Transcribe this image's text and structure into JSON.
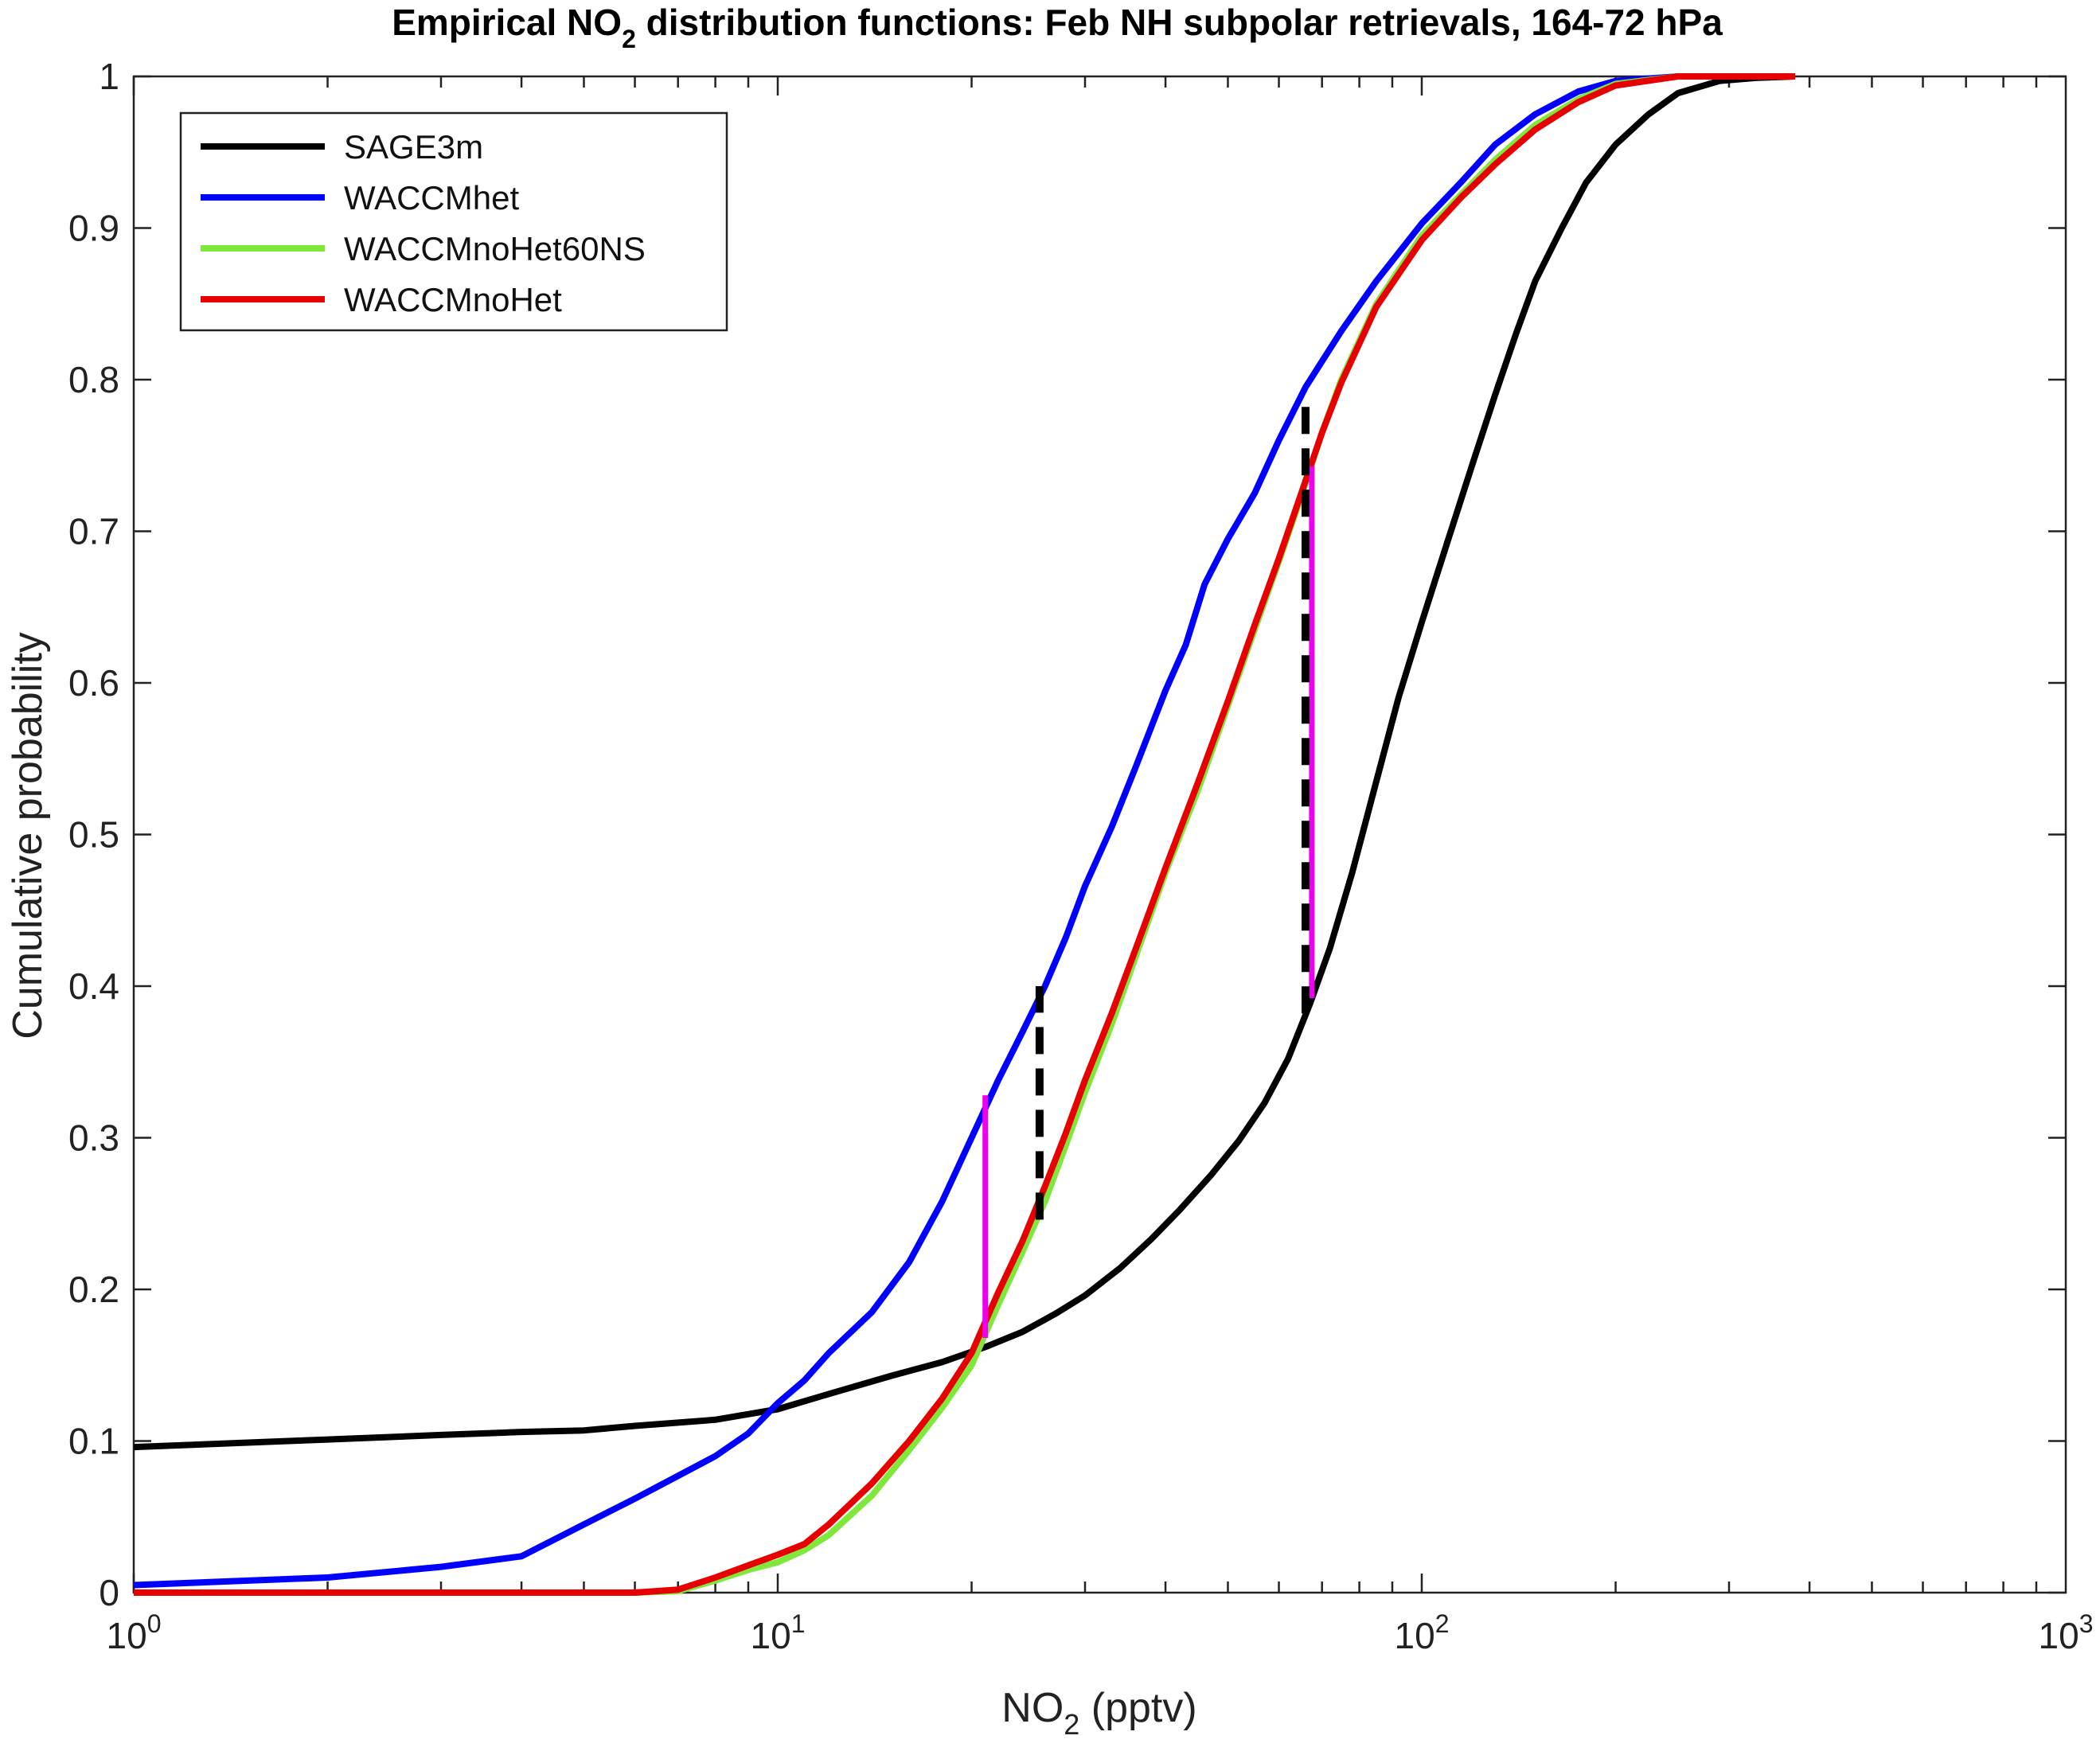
{
  "chart_data": {
    "type": "line",
    "title": {
      "prefix": "Empirical NO",
      "sub": "2",
      "suffix": " distribution functions: Feb NH subpolar retrievals, 164-72 hPa"
    },
    "xlabel": {
      "prefix": "NO",
      "sub": "2",
      "suffix": " (pptv)"
    },
    "ylabel": "Cumulative probability",
    "xscale": "log",
    "xlim": [
      1,
      1000
    ],
    "ylim": [
      0,
      1
    ],
    "grid": false,
    "legend_position": "top-left",
    "xticks": [
      {
        "value": 1,
        "base": "10",
        "exp": "0"
      },
      {
        "value": 10,
        "base": "10",
        "exp": "1"
      },
      {
        "value": 100,
        "base": "10",
        "exp": "2"
      },
      {
        "value": 1000,
        "base": "10",
        "exp": "3"
      }
    ],
    "yticks": [
      {
        "value": 0,
        "label": "0"
      },
      {
        "value": 0.1,
        "label": "0.1"
      },
      {
        "value": 0.2,
        "label": "0.2"
      },
      {
        "value": 0.3,
        "label": "0.3"
      },
      {
        "value": 0.4,
        "label": "0.4"
      },
      {
        "value": 0.5,
        "label": "0.5"
      },
      {
        "value": 0.6,
        "label": "0.6"
      },
      {
        "value": 0.7,
        "label": "0.7"
      },
      {
        "value": 0.8,
        "label": "0.8"
      },
      {
        "value": 0.9,
        "label": "0.9"
      },
      {
        "value": 1,
        "label": "1"
      }
    ],
    "series": [
      {
        "name": "SAGE3m",
        "color": "#000000",
        "points": [
          [
            1,
            0.096
          ],
          [
            2,
            0.101
          ],
          [
            3,
            0.104
          ],
          [
            4,
            0.106
          ],
          [
            5,
            0.107
          ],
          [
            6,
            0.11
          ],
          [
            8,
            0.114
          ],
          [
            10,
            0.121
          ],
          [
            12,
            0.131
          ],
          [
            15,
            0.143
          ],
          [
            18,
            0.152
          ],
          [
            21,
            0.162
          ],
          [
            24,
            0.172
          ],
          [
            27,
            0.184
          ],
          [
            30,
            0.196
          ],
          [
            34,
            0.214
          ],
          [
            38,
            0.233
          ],
          [
            42,
            0.252
          ],
          [
            47,
            0.275
          ],
          [
            52,
            0.298
          ],
          [
            57,
            0.323
          ],
          [
            62,
            0.352
          ],
          [
            67,
            0.388
          ],
          [
            72,
            0.425
          ],
          [
            78,
            0.475
          ],
          [
            85,
            0.535
          ],
          [
            92,
            0.59
          ],
          [
            100,
            0.64
          ],
          [
            110,
            0.695
          ],
          [
            120,
            0.745
          ],
          [
            130,
            0.79
          ],
          [
            140,
            0.83
          ],
          [
            150,
            0.865
          ],
          [
            165,
            0.9
          ],
          [
            180,
            0.93
          ],
          [
            200,
            0.955
          ],
          [
            225,
            0.975
          ],
          [
            250,
            0.989
          ],
          [
            290,
            0.997
          ],
          [
            330,
            0.999
          ],
          [
            380,
            1.0
          ]
        ]
      },
      {
        "name": "WACCMhet",
        "color": "#0000ff",
        "points": [
          [
            1,
            0.005
          ],
          [
            2,
            0.01
          ],
          [
            3,
            0.017
          ],
          [
            4,
            0.024
          ],
          [
            5,
            0.045
          ],
          [
            6,
            0.062
          ],
          [
            7,
            0.077
          ],
          [
            8,
            0.09
          ],
          [
            9,
            0.105
          ],
          [
            10,
            0.125
          ],
          [
            11,
            0.14
          ],
          [
            12,
            0.158
          ],
          [
            14,
            0.185
          ],
          [
            16,
            0.218
          ],
          [
            18,
            0.258
          ],
          [
            20,
            0.3
          ],
          [
            22,
            0.338
          ],
          [
            24,
            0.37
          ],
          [
            26,
            0.4
          ],
          [
            28,
            0.432
          ],
          [
            30,
            0.466
          ],
          [
            33,
            0.505
          ],
          [
            36,
            0.545
          ],
          [
            40,
            0.595
          ],
          [
            43,
            0.625
          ],
          [
            46,
            0.665
          ],
          [
            50,
            0.695
          ],
          [
            55,
            0.725
          ],
          [
            60,
            0.76
          ],
          [
            66,
            0.795
          ],
          [
            75,
            0.832
          ],
          [
            85,
            0.865
          ],
          [
            100,
            0.903
          ],
          [
            115,
            0.93
          ],
          [
            130,
            0.955
          ],
          [
            150,
            0.975
          ],
          [
            175,
            0.99
          ],
          [
            200,
            0.997
          ],
          [
            250,
            1.0
          ],
          [
            380,
            1.0
          ]
        ]
      },
      {
        "name": "WACCMnoHet60NS",
        "color": "#7fe83a",
        "points": [
          [
            1,
            0
          ],
          [
            6,
            0
          ],
          [
            7,
            0.001
          ],
          [
            8,
            0.008
          ],
          [
            9,
            0.015
          ],
          [
            10,
            0.02
          ],
          [
            11,
            0.028
          ],
          [
            12,
            0.038
          ],
          [
            14,
            0.064
          ],
          [
            16,
            0.094
          ],
          [
            18,
            0.122
          ],
          [
            20,
            0.15
          ],
          [
            22,
            0.19
          ],
          [
            24,
            0.225
          ],
          [
            26,
            0.258
          ],
          [
            28,
            0.295
          ],
          [
            30,
            0.33
          ],
          [
            33,
            0.375
          ],
          [
            36,
            0.42
          ],
          [
            40,
            0.475
          ],
          [
            45,
            0.53
          ],
          [
            50,
            0.585
          ],
          [
            55,
            0.635
          ],
          [
            60,
            0.68
          ],
          [
            65,
            0.723
          ],
          [
            70,
            0.765
          ],
          [
            75,
            0.8
          ],
          [
            85,
            0.85
          ],
          [
            100,
            0.895
          ],
          [
            115,
            0.922
          ],
          [
            130,
            0.945
          ],
          [
            150,
            0.968
          ],
          [
            175,
            0.985
          ],
          [
            200,
            0.995
          ],
          [
            250,
            1.0
          ],
          [
            380,
            1.0
          ]
        ]
      },
      {
        "name": "WACCMnoHet",
        "color": "#e60000",
        "points": [
          [
            1,
            0
          ],
          [
            6,
            0
          ],
          [
            7,
            0.002
          ],
          [
            8,
            0.01
          ],
          [
            9,
            0.018
          ],
          [
            10,
            0.025
          ],
          [
            11,
            0.032
          ],
          [
            12,
            0.045
          ],
          [
            14,
            0.072
          ],
          [
            16,
            0.1
          ],
          [
            18,
            0.128
          ],
          [
            20,
            0.158
          ],
          [
            22,
            0.198
          ],
          [
            24,
            0.232
          ],
          [
            26,
            0.268
          ],
          [
            28,
            0.303
          ],
          [
            30,
            0.338
          ],
          [
            33,
            0.382
          ],
          [
            36,
            0.425
          ],
          [
            40,
            0.478
          ],
          [
            45,
            0.535
          ],
          [
            50,
            0.588
          ],
          [
            55,
            0.638
          ],
          [
            60,
            0.682
          ],
          [
            65,
            0.725
          ],
          [
            70,
            0.765
          ],
          [
            75,
            0.798
          ],
          [
            85,
            0.848
          ],
          [
            100,
            0.892
          ],
          [
            115,
            0.92
          ],
          [
            130,
            0.942
          ],
          [
            150,
            0.965
          ],
          [
            175,
            0.983
          ],
          [
            200,
            0.994
          ],
          [
            250,
            1.0
          ],
          [
            380,
            1.0
          ]
        ]
      }
    ],
    "annotations": [
      {
        "kind": "magenta-vertical",
        "color": "#ee00ee",
        "x": 21.0,
        "y0": 0.168,
        "y1": 0.328
      },
      {
        "kind": "magenta-vertical",
        "color": "#ee00ee",
        "x": 67.5,
        "y0": 0.392,
        "y1": 0.743
      },
      {
        "kind": "dashed-vertical",
        "color": "#000000",
        "x": 25.5,
        "y0": 0.246,
        "y1": 0.4
      },
      {
        "kind": "dashed-vertical",
        "color": "#000000",
        "x": 66.0,
        "y0": 0.382,
        "y1": 0.785
      }
    ]
  }
}
